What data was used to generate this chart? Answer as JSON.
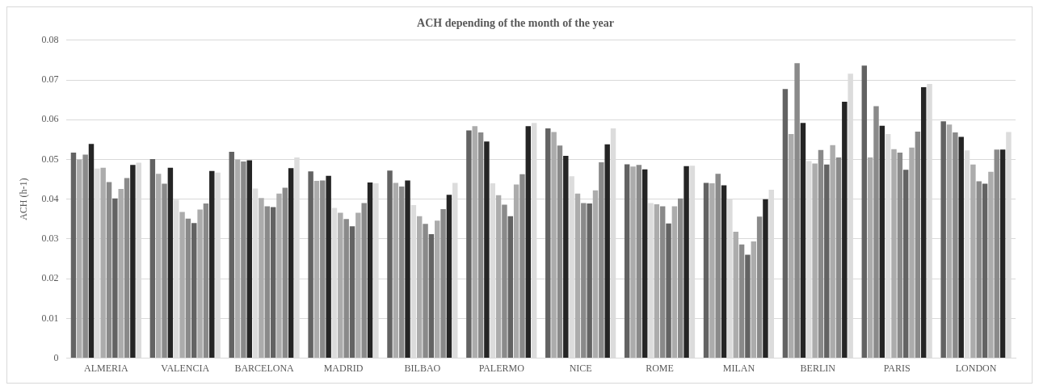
{
  "chart_data": {
    "type": "bar",
    "title": "ACH depending of the month of the year",
    "ylabel": "ACH (h-1)",
    "categories": [
      "ALMERIA",
      "VALENCIA",
      "BARCELONA",
      "MADRID",
      "BILBAO",
      "PALERMO",
      "NICE",
      "ROME",
      "MILAN",
      "BERLIN",
      "PARIS",
      "LONDON"
    ],
    "series": [
      {
        "color": "#636363",
        "values": [
          0.0517,
          0.0501,
          0.0519,
          0.047,
          0.0472,
          0.0573,
          0.0578,
          0.0488,
          0.0441,
          0.0677,
          0.0736,
          0.0596
        ]
      },
      {
        "color": "#acacac",
        "values": [
          0.05,
          0.0464,
          0.05,
          0.0446,
          0.0441,
          0.0584,
          0.0569,
          0.0482,
          0.044,
          0.0564,
          0.0505,
          0.0588
        ]
      },
      {
        "color": "#8a8a8a",
        "values": [
          0.0512,
          0.0439,
          0.0495,
          0.0447,
          0.0432,
          0.0568,
          0.0535,
          0.0486,
          0.0464,
          0.0742,
          0.0634,
          0.0568
        ]
      },
      {
        "color": "#252525",
        "values": [
          0.0539,
          0.0479,
          0.0498,
          0.0459,
          0.0447,
          0.0545,
          0.0509,
          0.0475,
          0.0435,
          0.0592,
          0.0585,
          0.0557
        ]
      },
      {
        "color": "#dcdcdc",
        "values": [
          0.0477,
          0.0399,
          0.0427,
          0.0378,
          0.0385,
          0.044,
          0.0458,
          0.039,
          0.04,
          0.0496,
          0.0564,
          0.0523
        ]
      },
      {
        "color": "#acacac",
        "values": [
          0.0479,
          0.0368,
          0.0403,
          0.0366,
          0.0357,
          0.041,
          0.0414,
          0.0387,
          0.0318,
          0.049,
          0.0526,
          0.0487
        ]
      },
      {
        "color": "#8a8a8a",
        "values": [
          0.0443,
          0.0351,
          0.0382,
          0.035,
          0.0338,
          0.0386,
          0.039,
          0.0382,
          0.0286,
          0.0524,
          0.0517,
          0.0445
        ]
      },
      {
        "color": "#636363",
        "values": [
          0.0402,
          0.034,
          0.038,
          0.0332,
          0.0312,
          0.0357,
          0.0389,
          0.0339,
          0.026,
          0.0487,
          0.0474,
          0.0439
        ]
      },
      {
        "color": "#acacac",
        "values": [
          0.0426,
          0.0374,
          0.0414,
          0.0366,
          0.0346,
          0.0437,
          0.0422,
          0.0382,
          0.0294,
          0.0536,
          0.053,
          0.0469
        ]
      },
      {
        "color": "#8a8a8a",
        "values": [
          0.0453,
          0.0389,
          0.0429,
          0.039,
          0.0375,
          0.0463,
          0.0493,
          0.0402,
          0.0356,
          0.0505,
          0.057,
          0.0525
        ]
      },
      {
        "color": "#252525",
        "values": [
          0.0486,
          0.0471,
          0.0478,
          0.0442,
          0.0411,
          0.0584,
          0.0538,
          0.0483,
          0.04,
          0.0645,
          0.0682,
          0.0525
        ]
      },
      {
        "color": "#dcdcdc",
        "values": [
          0.0492,
          0.0467,
          0.0505,
          0.044,
          0.0441,
          0.0592,
          0.0578,
          0.0484,
          0.0424,
          0.0716,
          0.069,
          0.0569
        ]
      }
    ],
    "ylim": [
      0,
      0.08
    ],
    "yticks": [
      0,
      0.01,
      0.02,
      0.03,
      0.04,
      0.05,
      0.06,
      0.07,
      0.08
    ],
    "grid": "y",
    "legend": false
  }
}
